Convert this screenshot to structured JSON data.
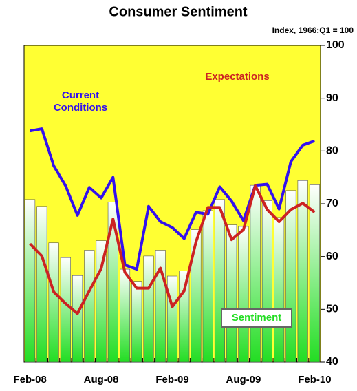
{
  "chart_data": {
    "type": "bar-line",
    "title": "Consumer Sentiment",
    "subtitle": "Index, 1966:Q1 = 100",
    "categories": [
      "Feb-08",
      null,
      null,
      null,
      null,
      null,
      "Aug-08",
      null,
      null,
      null,
      null,
      null,
      "Feb-09",
      null,
      null,
      null,
      null,
      null,
      "Aug-09",
      null,
      null,
      null,
      null,
      null,
      "Feb-10"
    ],
    "series": [
      {
        "name": "Sentiment",
        "kind": "bar",
        "color": "#22dd22",
        "values": [
          70.8,
          69.5,
          62.6,
          59.8,
          56.4,
          61.2,
          63.0,
          70.3,
          57.6,
          55.3,
          60.1,
          61.2,
          56.3,
          57.3,
          65.1,
          68.7,
          70.8,
          66.0,
          65.7,
          73.5,
          70.6,
          67.4,
          72.5,
          74.4,
          73.6
        ]
      },
      {
        "name": "Current Conditions",
        "kind": "line",
        "color": "#3311ee",
        "values": [
          83.8,
          84.2,
          77.2,
          73.4,
          67.8,
          73.1,
          71.1,
          75.0,
          58.4,
          57.6,
          69.5,
          66.6,
          65.5,
          63.4,
          68.4,
          68.0,
          73.2,
          70.5,
          66.8,
          73.5,
          73.7,
          69.0,
          78.0,
          81.1,
          81.9
        ]
      },
      {
        "name": "Expectations",
        "kind": "line",
        "color": "#cc2222",
        "values": [
          62.4,
          60.1,
          53.3,
          51.1,
          49.2,
          53.5,
          57.7,
          67.1,
          57.0,
          54.0,
          54.0,
          57.8,
          50.5,
          53.5,
          62.8,
          69.3,
          69.3,
          63.2,
          65.1,
          73.4,
          68.9,
          66.6,
          68.9,
          70.1,
          68.4
        ]
      }
    ],
    "ylim": [
      40,
      100
    ],
    "yticks": [
      40,
      50,
      60,
      70,
      80,
      90,
      100
    ],
    "y_axis_side": "right",
    "background": "#ffff33",
    "grid": false
  }
}
